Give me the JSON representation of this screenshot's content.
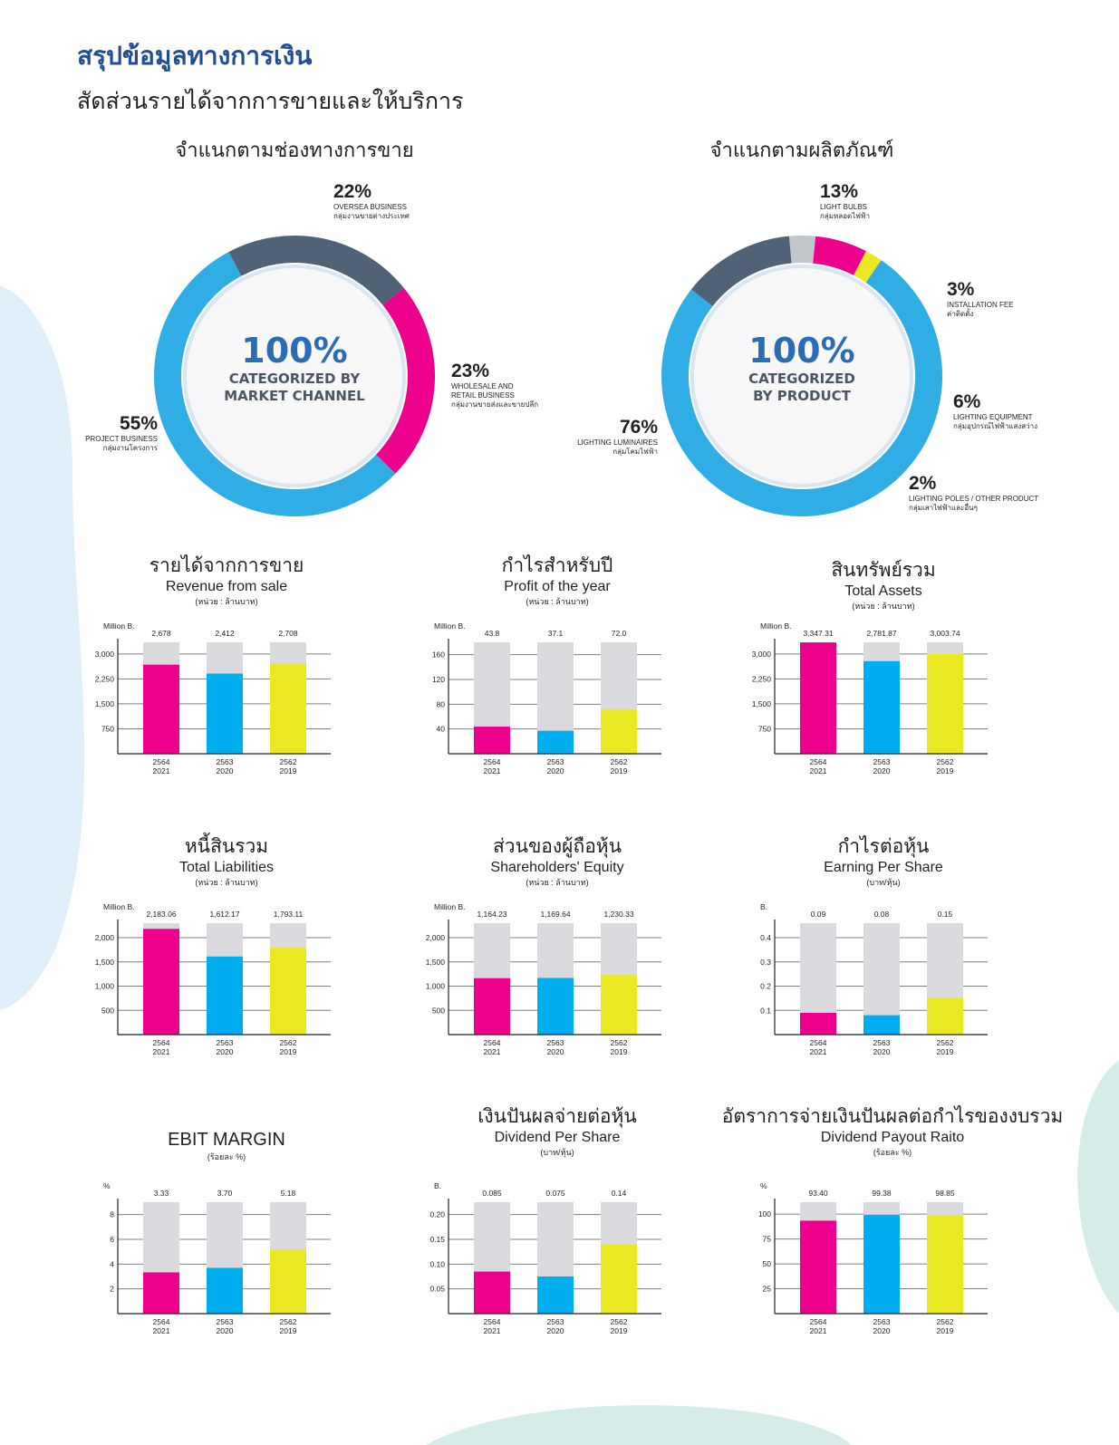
{
  "heading": "สรุปข้อมูลทางการเงิน",
  "subheading": "สัดส่วนรายได้จากการขายและให้บริการ",
  "colors": {
    "magenta": "#ec008c",
    "cyan": "#00aeef",
    "yellow": "#eae823",
    "slate": "#4f6276",
    "grey": "#c3c7cc",
    "blue": "#2a6db4",
    "bar_bg": "#d9d9de"
  },
  "donuts": [
    {
      "title": "จำแนกตามช่องทางการขาย",
      "center_value": "100%",
      "center_caption": [
        "CATEGORIZED BY",
        "MARKET CHANNEL"
      ],
      "segments": [
        {
          "pct_label": "22%",
          "value": 22,
          "en": "OVERSEA BUSINESS",
          "th": "กลุ่มงานขายต่างประเทศ",
          "color": "#4f6276"
        },
        {
          "pct_label": "23%",
          "value": 23,
          "en": "WHOLESALE AND\nRETAIL BUSINESS",
          "th": "กลุ่มงานขายส่งและขายปลีก",
          "color": "#ec008c"
        },
        {
          "pct_label": "55%",
          "value": 55,
          "en": "PROJECT BUSINESS",
          "th": "กลุ่มงานโครงการ",
          "color": "#2fade4"
        }
      ]
    },
    {
      "title": "จำแนกตามผลิตภัณฑ์",
      "center_value": "100%",
      "center_caption": [
        "CATEGORIZED",
        "BY PRODUCT"
      ],
      "segments": [
        {
          "pct_label": "13%",
          "value": 13,
          "en": "LIGHT BULBS",
          "th": "กลุ่มหลอดไฟฟ้า",
          "color": "#4f6276"
        },
        {
          "pct_label": "3%",
          "value": 3,
          "en": "INSTALLATION FEE",
          "th": "ค่าติดตั้ง",
          "color": "#c3c7cc"
        },
        {
          "pct_label": "6%",
          "value": 6,
          "en": "LIGHTING EQUIPMENT",
          "th": "กลุ่มอุปกรณ์ไฟฟ้าแสงสว่าง",
          "color": "#ec008c"
        },
        {
          "pct_label": "2%",
          "value": 2,
          "en": "LIGHTING POLES / OTHER PRODUCT",
          "th": "กลุ่มเสาไฟฟ้าและอื่นๆ",
          "color": "#eae823"
        },
        {
          "pct_label": "76%",
          "value": 76,
          "en": "LIGHTING LUMINAIRES",
          "th": "กลุ่มโคมไฟฟ้า",
          "color": "#2fade4"
        }
      ]
    }
  ],
  "chart_data": [
    {
      "type": "bar",
      "title_th": "รายได้จากการขาย",
      "title": "Revenue from sale",
      "unit": "(หน่วย : ล้านบาท)",
      "ylabel": "Million B.",
      "categories": [
        "2564\n2021",
        "2563\n2020",
        "2562\n2019"
      ],
      "values": [
        2678,
        2412,
        2708
      ],
      "value_labels": [
        "2,678",
        "2,412",
        "2,708"
      ],
      "yticks": [
        750,
        1500,
        2250,
        3000
      ],
      "ytick_labels": [
        "750",
        "1,500",
        "2,250",
        "3,000"
      ],
      "ylim": [
        0,
        3350
      ]
    },
    {
      "type": "bar",
      "title_th": "กำไรสำหรับปี",
      "title": "Profit of the year",
      "unit": "(หน่วย : ล้านบาท)",
      "ylabel": "Million B.",
      "categories": [
        "2564\n2021",
        "2563\n2020",
        "2562\n2019"
      ],
      "values": [
        43.8,
        37.1,
        72.0
      ],
      "value_labels": [
        "43.8",
        "37.1",
        "72.0"
      ],
      "yticks": [
        40,
        80,
        120,
        160
      ],
      "ytick_labels": [
        "40",
        "80",
        "120",
        "160"
      ],
      "ylim": [
        0,
        180
      ]
    },
    {
      "type": "bar",
      "title_th": "สินทรัพย์รวม",
      "title": "Total Assets",
      "unit": "(หน่วย : ล้านบาท)",
      "ylabel": "Million B.",
      "categories": [
        "2564\n2021",
        "2563\n2020",
        "2562\n2019"
      ],
      "values": [
        3347.31,
        2781.87,
        3003.74
      ],
      "value_labels": [
        "3,347.31",
        "2,781.87",
        "3,003.74"
      ],
      "yticks": [
        750,
        1500,
        2250,
        3000
      ],
      "ytick_labels": [
        "750",
        "1,500",
        "2,250",
        "3,000"
      ],
      "ylim": [
        0,
        3350
      ]
    },
    {
      "type": "bar",
      "title_th": "หนี้สินรวม",
      "title": "Total Liabilities",
      "unit": "(หน่วย : ล้านบาท)",
      "ylabel": "Million B.",
      "categories": [
        "2564\n2021",
        "2563\n2020",
        "2562\n2019"
      ],
      "values": [
        2183.06,
        1612.17,
        1793.11
      ],
      "value_labels": [
        "2,183.06",
        "1,612.17",
        "1,793.11"
      ],
      "yticks": [
        500,
        1000,
        1500,
        2000
      ],
      "ytick_labels": [
        "500",
        "1,000",
        "1,500",
        "2,000"
      ],
      "ylim": [
        0,
        2300
      ]
    },
    {
      "type": "bar",
      "title_th": "ส่วนของผู้ถือหุ้น",
      "title": "Shareholders' Equity",
      "unit": "(หน่วย : ล้านบาท)",
      "ylabel": "Million B.",
      "categories": [
        "2564\n2021",
        "2563\n2020",
        "2562\n2019"
      ],
      "values": [
        1164.23,
        1169.64,
        1230.33
      ],
      "value_labels": [
        "1,164.23",
        "1,169.64",
        "1,230.33"
      ],
      "yticks": [
        500,
        1000,
        1500,
        2000
      ],
      "ytick_labels": [
        "500",
        "1,000",
        "1,500",
        "2,000"
      ],
      "ylim": [
        0,
        2300
      ]
    },
    {
      "type": "bar",
      "title_th": "กำไรต่อหุ้น",
      "title": "Earning Per Share",
      "unit": "(บาท/หุ้น)",
      "ylabel": "B.",
      "categories": [
        "2564\n2021",
        "2563\n2020",
        "2562\n2019"
      ],
      "values": [
        0.09,
        0.08,
        0.15
      ],
      "value_labels": [
        "0.09",
        "0.08",
        "0.15"
      ],
      "yticks": [
        0.1,
        0.2,
        0.3,
        0.4
      ],
      "ytick_labels": [
        "0.1",
        "0.2",
        "0.3",
        "0.4"
      ],
      "ylim": [
        0,
        0.46
      ]
    },
    {
      "type": "bar",
      "title_th": "",
      "title": "EBIT MARGIN",
      "unit": "(ร้อยละ %)",
      "ylabel": "%",
      "categories": [
        "2564\n2021",
        "2563\n2020",
        "2562\n2019"
      ],
      "values": [
        3.33,
        3.7,
        5.18
      ],
      "value_labels": [
        "3.33",
        "3.70",
        "5.18"
      ],
      "yticks": [
        2,
        4,
        6,
        8
      ],
      "ytick_labels": [
        "2",
        "4",
        "6",
        "8"
      ],
      "ylim": [
        0,
        9
      ]
    },
    {
      "type": "bar",
      "title_th": "เงินปันผลจ่ายต่อหุ้น",
      "title": "Dividend Per Share",
      "unit": "(บาท/หุ้น)",
      "ylabel": "B.",
      "categories": [
        "2564\n2021",
        "2563\n2020",
        "2562\n2019"
      ],
      "values": [
        0.085,
        0.075,
        0.14
      ],
      "value_labels": [
        "0.085",
        "0.075",
        "0.14"
      ],
      "yticks": [
        0.05,
        0.1,
        0.15,
        0.2
      ],
      "ytick_labels": [
        "0.05",
        "0.10",
        "0.15",
        "0.20"
      ],
      "ylim": [
        0,
        0.225
      ]
    },
    {
      "type": "bar",
      "title_th": "อัตราการจ่ายเงินปันผลต่อกำไรของงบรวม",
      "title": "Dividend Payout Raito",
      "unit": "(ร้อยละ %)",
      "ylabel": "%",
      "categories": [
        "2564\n2021",
        "2563\n2020",
        "2562\n2019"
      ],
      "values": [
        93.4,
        99.38,
        98.85
      ],
      "value_labels": [
        "93.40",
        "99.38",
        "98.85"
      ],
      "yticks": [
        25,
        50,
        75,
        100
      ],
      "ytick_labels": [
        "25",
        "50",
        "75",
        "100"
      ],
      "ylim": [
        0,
        112
      ]
    }
  ]
}
